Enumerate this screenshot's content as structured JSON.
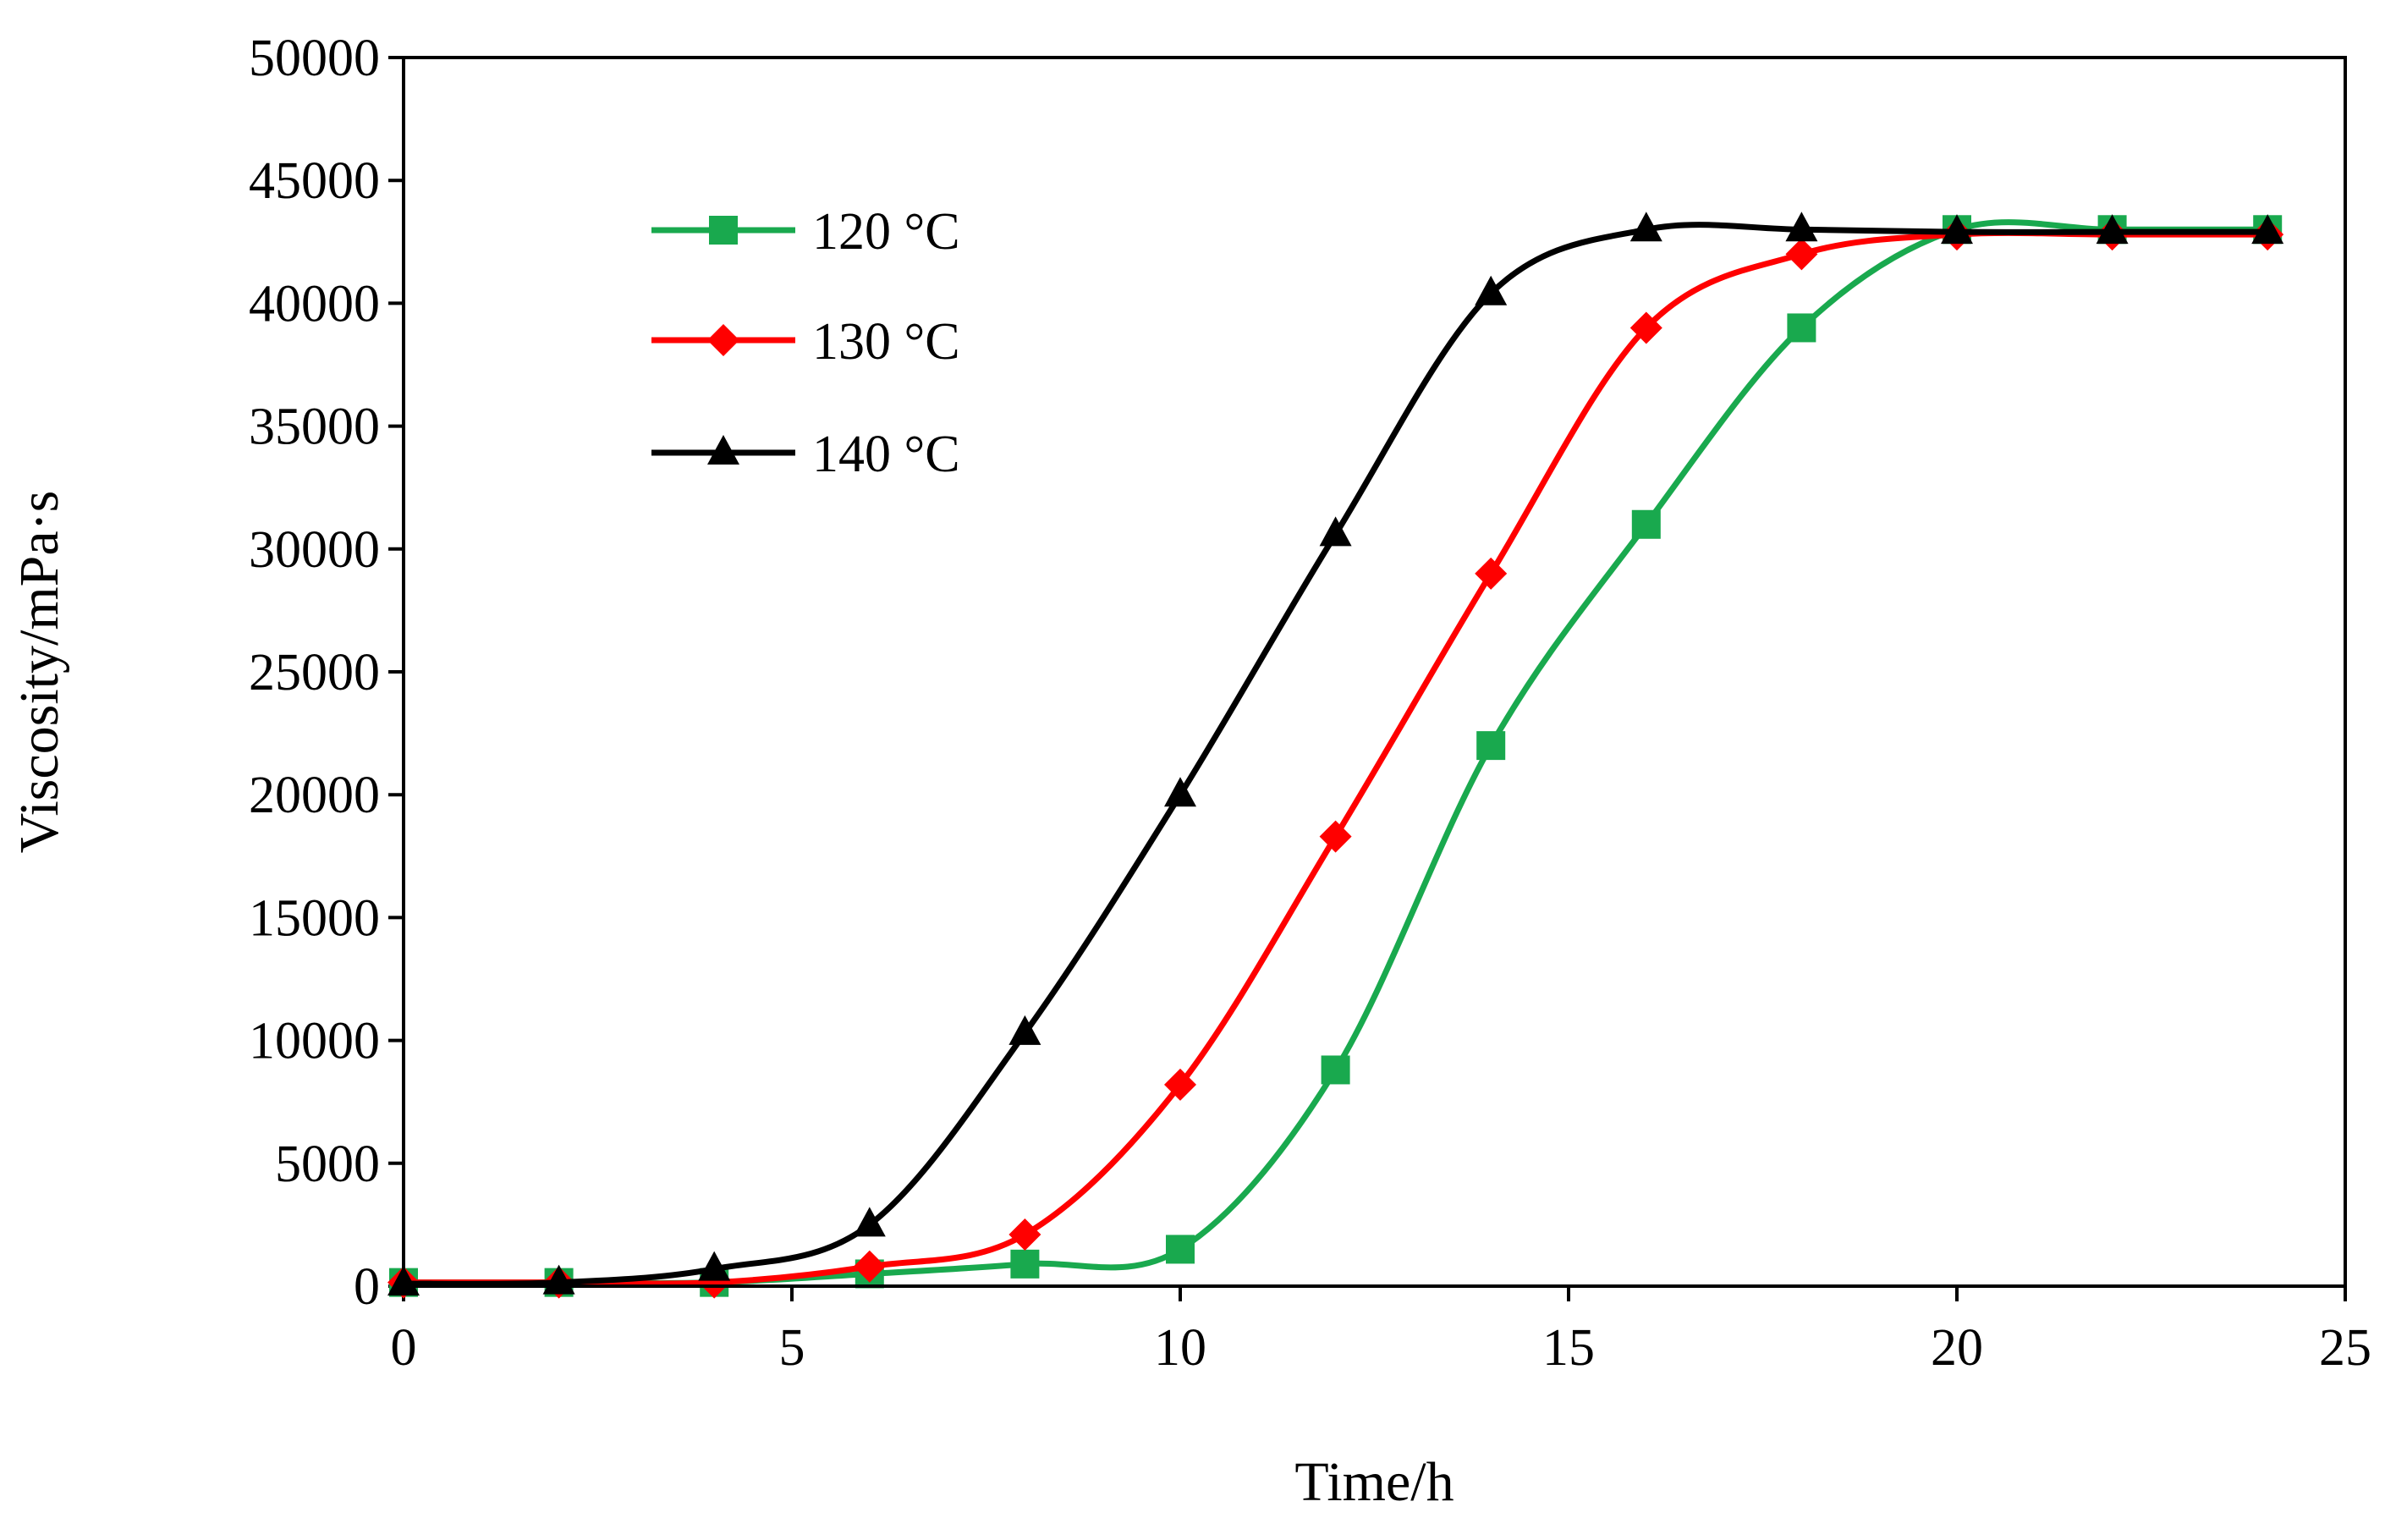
{
  "chart_data": {
    "type": "line",
    "title": "",
    "xlabel": "Time/h",
    "ylabel": "Viscosity/mPa·s",
    "xlim": [
      0,
      25
    ],
    "ylim": [
      0,
      50000
    ],
    "x_ticks": [
      0,
      5,
      10,
      15,
      20,
      25
    ],
    "y_ticks": [
      0,
      5000,
      10000,
      15000,
      20000,
      25000,
      30000,
      35000,
      40000,
      45000,
      50000
    ],
    "grid": false,
    "legend_position": "top-left",
    "x": [
      0,
      2,
      4,
      6,
      8,
      10,
      12,
      14,
      16,
      18,
      20,
      22,
      24
    ],
    "series": [
      {
        "name": "120 °C",
        "color": "#19a94e",
        "marker": "square",
        "values": [
          150,
          150,
          150,
          500,
          900,
          1500,
          8800,
          22000,
          31000,
          39000,
          43000,
          43000,
          43000
        ]
      },
      {
        "name": "130 °C",
        "color": "#ff0000",
        "marker": "diamond",
        "values": [
          150,
          150,
          150,
          800,
          2100,
          8200,
          18300,
          29000,
          39000,
          42000,
          42800,
          42800,
          42800
        ]
      },
      {
        "name": "140 °C",
        "color": "#000000",
        "marker": "triangle",
        "values": [
          100,
          150,
          700,
          2500,
          10300,
          20000,
          30600,
          40400,
          43000,
          43000,
          42900,
          42900,
          42900
        ]
      }
    ]
  }
}
